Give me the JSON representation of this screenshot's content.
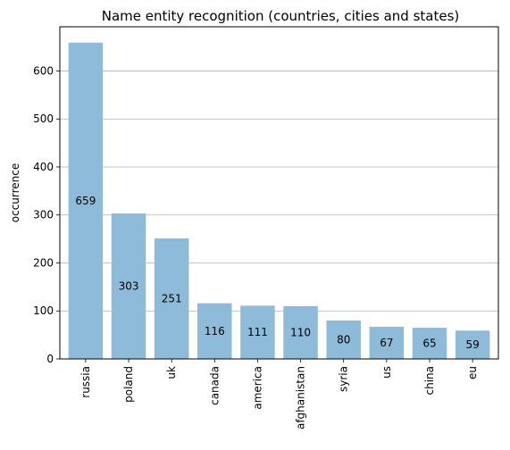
{
  "chart_data": {
    "type": "bar",
    "title": "Name entity recognition (countries, cities and states)",
    "xlabel": "",
    "ylabel": "occurrence",
    "categories": [
      "russia",
      "poland",
      "uk",
      "canada",
      "america",
      "afghanistan",
      "syria",
      "us",
      "china",
      "eu"
    ],
    "values": [
      659,
      303,
      251,
      116,
      111,
      110,
      80,
      67,
      65,
      59
    ],
    "ylim": [
      0,
      692
    ],
    "yticks": [
      0,
      100,
      200,
      300,
      400,
      500,
      600
    ],
    "grid": "y-major",
    "bar_color": "#8fbbda",
    "data_labels": true,
    "legend": "none"
  }
}
